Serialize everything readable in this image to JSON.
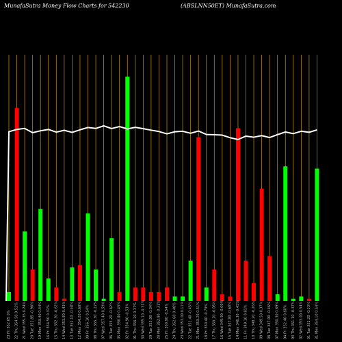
{
  "header": {
    "left_title": "MunafaSutra  Money Flow  Charts for 542230",
    "right_title": "(ABSLNN50ET) MunafaSutra.com"
  },
  "chart_data": {
    "type": "bar",
    "title": "MunafaSutra  Money Flow  Charts for 542230",
    "subtitle": "(ABSLNN50ET) MunafaSutra.com",
    "xlabel": "",
    "ylabel": "",
    "grid": true,
    "colors": {
      "up": "#00ff00",
      "down": "#ff0000",
      "line": "#ffffff",
      "grid": "#b8860b",
      "background": "#000000"
    },
    "categories": [
      "23 Fri 352.65 0%",
      "22 Thu 354.50 0.52%",
      "21 Wed 355.35 0.24%",
      "20 Tue 351.85 -0.98%",
      "19 Mon 353.40 0.44%",
      "16 Fri 354.50 0.31%",
      "15 Thu 352.30 -0.62%",
      "14 Wed 353.80 0.43%",
      "13 Tue 352.10 -0.48%",
      "12 Mon 354.20 0.60%",
      "09 Fri 356.10 0.54%",
      "08 Thu 355.30 -0.22%",
      "07 Wed 357.40 0.59%",
      "06 Tue 355.20 -0.62%",
      "05 Mon 356.80 0.45%",
      "02 Fri 354.90 -0.53%",
      "01 Thu 356.20 0.37%",
      "30 Wed 355.10 -0.31%",
      "29 Tue 353.90 -0.34%",
      "28 Mon 352.80 -0.31%",
      "25 Fri 350.90 -0.54%",
      "24 Thu 352.60 0.48%",
      "23 Wed 353.00 0.11%",
      "22 Tue 351.40 -0.45%",
      "21 Mon 353.20 0.51%",
      "18 Fri 350.40 -0.79%",
      "17 Thu 350.20 -0.06%",
      "16 Wed 349.90 -0.09%",
      "15 Tue 347.80 -0.60%",
      "14 Mon 346.30 -0.43%",
      "11 Fri 349.10 0.81%",
      "10 Thu 348.20 -0.26%",
      "09 Wed 349.50 0.37%",
      "08 Tue 347.90 -0.46%",
      "07 Mon 350.30 0.69%",
      "04 Fri 352.40 0.60%",
      "03 Thu 351.10 -0.37%",
      "02 Wed 353.00 0.54%",
      "01 Tue 352.20 -0.23%",
      "31 Mon 354.10 0.54%"
    ],
    "bars": [
      {
        "value": 4,
        "dir": "up"
      },
      {
        "value": 86,
        "dir": "down"
      },
      {
        "value": 31,
        "dir": "up"
      },
      {
        "value": 14,
        "dir": "down"
      },
      {
        "value": 41,
        "dir": "up"
      },
      {
        "value": 10,
        "dir": "up"
      },
      {
        "value": 6,
        "dir": "down"
      },
      {
        "value": 1,
        "dir": "down"
      },
      {
        "value": 15,
        "dir": "up"
      },
      {
        "value": 16,
        "dir": "down"
      },
      {
        "value": 39,
        "dir": "up"
      },
      {
        "value": 14,
        "dir": "up"
      },
      {
        "value": 1,
        "dir": "up"
      },
      {
        "value": 28,
        "dir": "up"
      },
      {
        "value": 4,
        "dir": "down"
      },
      {
        "value": 100,
        "dir": "up"
      },
      {
        "value": 6,
        "dir": "down"
      },
      {
        "value": 6,
        "dir": "down"
      },
      {
        "value": 4,
        "dir": "down"
      },
      {
        "value": 4,
        "dir": "down"
      },
      {
        "value": 6,
        "dir": "down"
      },
      {
        "value": 2,
        "dir": "up"
      },
      {
        "value": 2,
        "dir": "up"
      },
      {
        "value": 18,
        "dir": "up"
      },
      {
        "value": 73,
        "dir": "down"
      },
      {
        "value": 6,
        "dir": "up"
      },
      {
        "value": 14,
        "dir": "down"
      },
      {
        "value": 3,
        "dir": "down"
      },
      {
        "value": 2,
        "dir": "down"
      },
      {
        "value": 77,
        "dir": "down"
      },
      {
        "value": 18,
        "dir": "down"
      },
      {
        "value": 8,
        "dir": "down"
      },
      {
        "value": 50,
        "dir": "down"
      },
      {
        "value": 20,
        "dir": "down"
      },
      {
        "value": 3,
        "dir": "up"
      },
      {
        "value": 60,
        "dir": "up"
      },
      {
        "value": 1,
        "dir": "up"
      },
      {
        "value": 2,
        "dir": "up"
      },
      {
        "value": 1,
        "dir": "down"
      },
      {
        "value": 59,
        "dir": "up"
      }
    ],
    "price_line": [
      352.65,
      354.5,
      355.35,
      351.85,
      353.4,
      354.5,
      352.3,
      353.8,
      352.1,
      354.2,
      356.1,
      355.3,
      357.4,
      355.2,
      356.8,
      354.9,
      356.2,
      355.1,
      353.9,
      352.8,
      350.9,
      352.6,
      353.0,
      351.4,
      353.2,
      350.4,
      350.2,
      349.9,
      347.8,
      346.3,
      349.1,
      348.2,
      349.5,
      347.9,
      350.3,
      352.4,
      351.1,
      353.0,
      352.2,
      354.1
    ],
    "price_start": 230
  }
}
